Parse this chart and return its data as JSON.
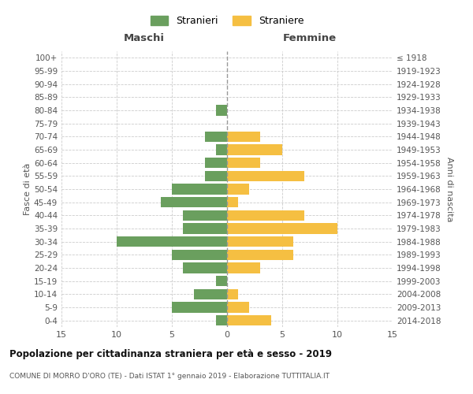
{
  "age_groups_bottom_to_top": [
    "0-4",
    "5-9",
    "10-14",
    "15-19",
    "20-24",
    "25-29",
    "30-34",
    "35-39",
    "40-44",
    "45-49",
    "50-54",
    "55-59",
    "60-64",
    "65-69",
    "70-74",
    "75-79",
    "80-84",
    "85-89",
    "90-94",
    "95-99",
    "100+"
  ],
  "birth_years_bottom_to_top": [
    "2014-2018",
    "2009-2013",
    "2004-2008",
    "1999-2003",
    "1994-1998",
    "1989-1993",
    "1984-1988",
    "1979-1983",
    "1974-1978",
    "1969-1973",
    "1964-1968",
    "1959-1963",
    "1954-1958",
    "1949-1953",
    "1944-1948",
    "1939-1943",
    "1934-1938",
    "1929-1933",
    "1924-1928",
    "1919-1923",
    "≤ 1918"
  ],
  "maschi_bottom_to_top": [
    1,
    5,
    3,
    1,
    4,
    5,
    10,
    4,
    4,
    6,
    5,
    2,
    2,
    1,
    2,
    0,
    1,
    0,
    0,
    0,
    0
  ],
  "femmine_bottom_to_top": [
    4,
    2,
    1,
    0,
    3,
    6,
    6,
    10,
    7,
    1,
    2,
    7,
    3,
    5,
    3,
    0,
    0,
    0,
    0,
    0,
    0
  ],
  "color_maschi": "#6a9f5e",
  "color_femmine": "#f5bf42",
  "title": "Popolazione per cittadinanza straniera per età e sesso - 2019",
  "subtitle": "COMUNE DI MORRO D'ORO (TE) - Dati ISTAT 1° gennaio 2019 - Elaborazione TUTTITALIA.IT",
  "label_maschi": "Maschi",
  "label_femmine": "Femmine",
  "ylabel_left": "Fasce di età",
  "ylabel_right": "Anni di nascita",
  "legend_maschi": "Stranieri",
  "legend_femmine": "Straniere",
  "xlim": 15,
  "background_color": "#ffffff",
  "grid_color": "#cccccc",
  "spine_color": "#aaaaaa"
}
